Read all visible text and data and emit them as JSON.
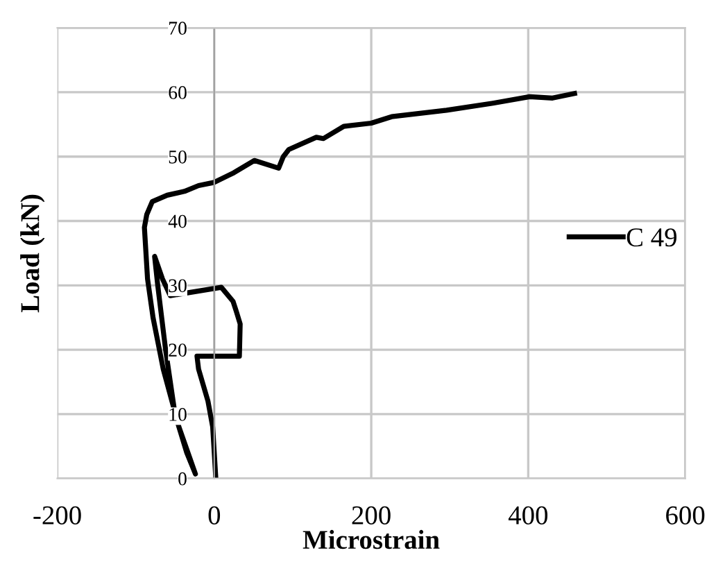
{
  "chart_data": {
    "type": "line",
    "xlabel": "Microstrain",
    "ylabel": "Load (kN)",
    "xlim": [
      -200,
      600
    ],
    "xticks": [
      -200,
      0,
      200,
      400,
      600
    ],
    "ylim": [
      0,
      70
    ],
    "yticks": [
      0,
      10,
      20,
      30,
      40,
      50,
      60,
      70
    ],
    "grid": true,
    "legend": "right",
    "marker": "none",
    "line_style": "solid",
    "series": [
      {
        "name": "C 49",
        "color": "#000000",
        "x": [
          2,
          -2,
          -8,
          -20,
          -22,
          10,
          32,
          33,
          28,
          24,
          9,
          -56,
          -66,
          -76,
          -72,
          -62,
          -50,
          -35,
          -24,
          -45,
          -65,
          -78,
          -85,
          -89,
          -86,
          -79,
          -60,
          -38,
          -20,
          0,
          25,
          51,
          82,
          88,
          95,
          130,
          139,
          165,
          200,
          226,
          296,
          355,
          402,
          431,
          459
        ],
        "values": [
          0,
          8,
          12,
          17,
          19,
          19,
          19,
          24,
          26,
          27.5,
          29.7,
          28.4,
          31,
          34.5,
          30,
          20,
          10,
          4,
          0.7,
          8,
          17,
          25,
          31,
          39,
          41,
          43,
          44,
          44.6,
          45.5,
          46,
          47.5,
          49.4,
          48.2,
          50,
          51.1,
          53,
          52.8,
          54.7,
          55.2,
          56.2,
          57.2,
          58.3,
          59.3,
          59.1,
          59.8
        ]
      }
    ]
  }
}
